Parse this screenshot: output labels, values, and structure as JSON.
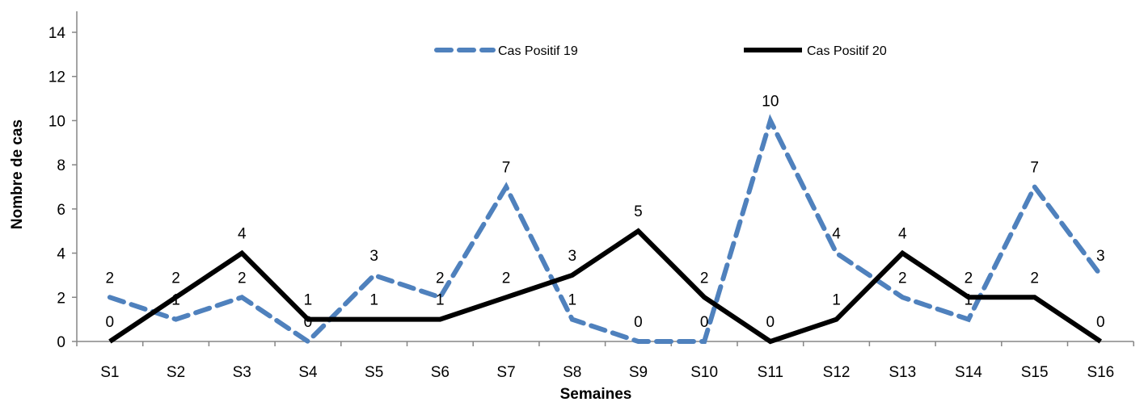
{
  "chart_data": {
    "type": "line",
    "title": "",
    "xlabel": "Semaines",
    "ylabel": "Nombre de cas",
    "categories": [
      "S1",
      "S2",
      "S3",
      "S4",
      "S5",
      "S6",
      "S7",
      "S8",
      "S9",
      "S10",
      "S11",
      "S12",
      "S13",
      "S14",
      "S15",
      "S16"
    ],
    "ylim": [
      0,
      14
    ],
    "yticks": [
      0,
      2,
      4,
      6,
      8,
      10,
      12,
      14
    ],
    "grid": false,
    "legend_position": "top",
    "series": [
      {
        "name": "Cas Positif 19",
        "values": [
          2,
          1,
          2,
          0,
          3,
          2,
          7,
          1,
          0,
          0,
          10,
          4,
          2,
          1,
          7,
          3
        ],
        "color": "#4F81BD",
        "style": "dashed"
      },
      {
        "name": "Cas Positif 20",
        "values": [
          0,
          2,
          4,
          1,
          1,
          1,
          2,
          3,
          5,
          2,
          0,
          1,
          4,
          2,
          2,
          0
        ],
        "color": "#000000",
        "style": "solid"
      }
    ]
  }
}
